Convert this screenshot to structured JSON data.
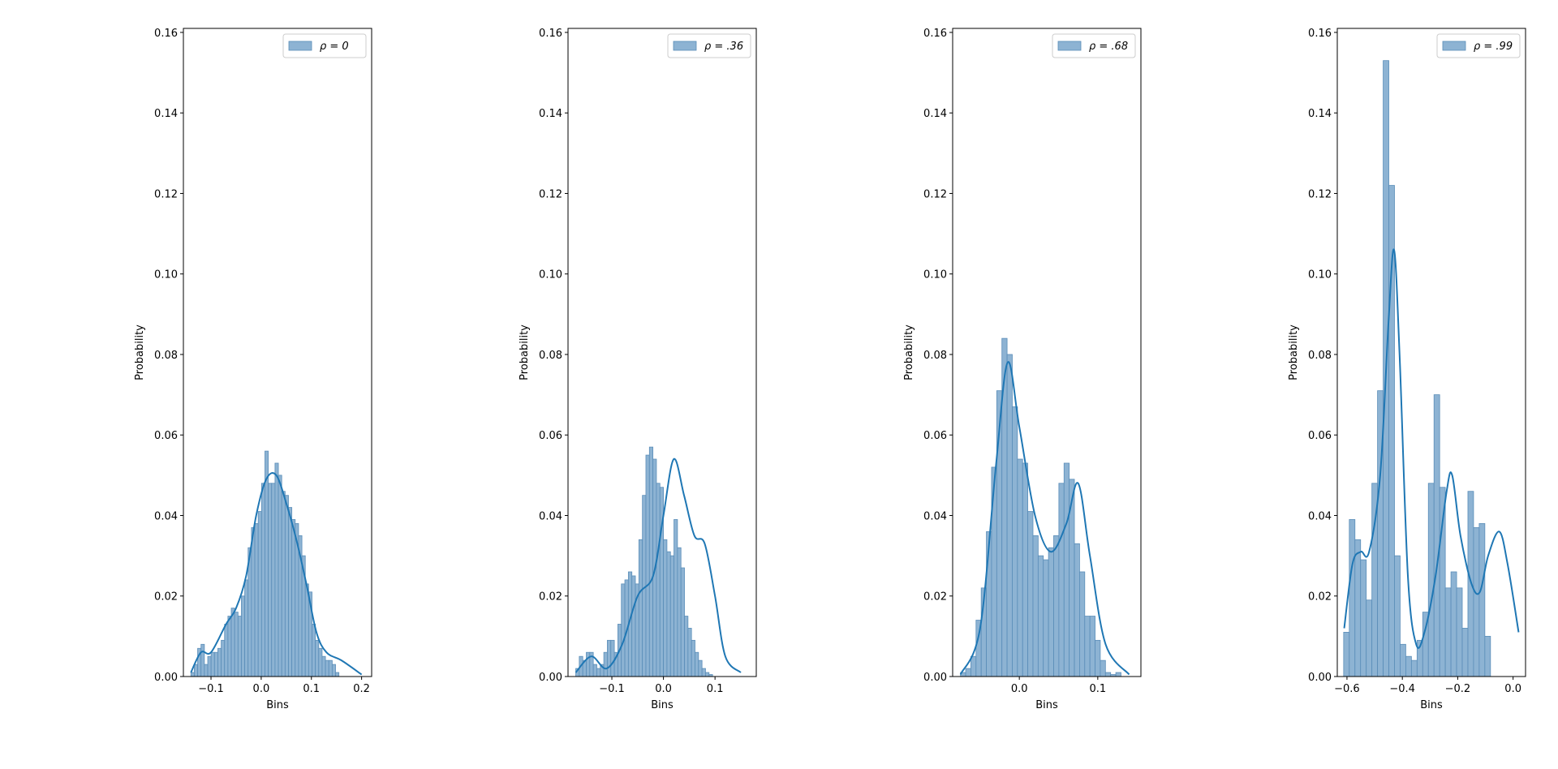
{
  "chart_data": [
    {
      "type": "bar",
      "xlabel": "Bins",
      "ylabel": "Probability",
      "legend": {
        "label": "ρ = 0",
        "placement": "top-right"
      },
      "xlim": [
        -0.155,
        0.22
      ],
      "ylim": [
        0,
        0.161
      ],
      "xticks": [
        -0.1,
        0.0,
        0.1,
        0.2
      ],
      "xtick_labels": [
        "−0.1",
        "0.0",
        "0.1",
        "0.2"
      ],
      "yticks": [
        0,
        0.02,
        0.04,
        0.06,
        0.08,
        0.1,
        0.12,
        0.14,
        0.16
      ],
      "ytick_labels": [
        "0.00",
        "0.02",
        "0.04",
        "0.06",
        "0.08",
        "0.10",
        "0.12",
        "0.14",
        "0.16"
      ],
      "bin_start": -0.14,
      "bin_width": 0.0067,
      "values": [
        0.001,
        0.003,
        0.007,
        0.008,
        0.003,
        0.005,
        0.006,
        0.006,
        0.007,
        0.009,
        0.013,
        0.015,
        0.017,
        0.016,
        0.015,
        0.02,
        0.024,
        0.032,
        0.037,
        0.038,
        0.041,
        0.048,
        0.056,
        0.048,
        0.048,
        0.053,
        0.05,
        0.046,
        0.045,
        0.042,
        0.039,
        0.038,
        0.035,
        0.03,
        0.023,
        0.021,
        0.013,
        0.009,
        0.007,
        0.005,
        0.004,
        0.004,
        0.003,
        0.001
      ],
      "kde": [
        [
          -0.14,
          0.001
        ],
        [
          -0.12,
          0.006
        ],
        [
          -0.1,
          0.006
        ],
        [
          -0.07,
          0.013
        ],
        [
          -0.05,
          0.017
        ],
        [
          -0.03,
          0.025
        ],
        [
          -0.01,
          0.04
        ],
        [
          0.01,
          0.049
        ],
        [
          0.03,
          0.05
        ],
        [
          0.05,
          0.043
        ],
        [
          0.07,
          0.034
        ],
        [
          0.09,
          0.023
        ],
        [
          0.11,
          0.011
        ],
        [
          0.13,
          0.006
        ],
        [
          0.16,
          0.004
        ],
        [
          0.2,
          0.0005
        ]
      ]
    },
    {
      "type": "bar",
      "xlabel": "Bins",
      "ylabel": "Probability",
      "legend": {
        "label": "ρ = .36",
        "placement": "top-right"
      },
      "xlim": [
        -0.185,
        0.18
      ],
      "ylim": [
        0,
        0.161
      ],
      "xticks": [
        -0.1,
        0.0,
        0.1
      ],
      "xtick_labels": [
        "−0.1",
        "0.0",
        "0.1"
      ],
      "yticks": [
        0,
        0.02,
        0.04,
        0.06,
        0.08,
        0.1,
        0.12,
        0.14,
        0.16
      ],
      "ytick_labels": [
        "0.00",
        "0.02",
        "0.04",
        "0.06",
        "0.08",
        "0.10",
        "0.12",
        "0.14",
        "0.16"
      ],
      "bin_start": -0.17,
      "bin_width": 0.0068,
      "values": [
        0.002,
        0.005,
        0.004,
        0.006,
        0.006,
        0.003,
        0.002,
        0.003,
        0.006,
        0.009,
        0.009,
        0.006,
        0.013,
        0.023,
        0.024,
        0.026,
        0.025,
        0.023,
        0.034,
        0.045,
        0.055,
        0.057,
        0.054,
        0.048,
        0.047,
        0.034,
        0.031,
        0.03,
        0.039,
        0.032,
        0.027,
        0.015,
        0.012,
        0.009,
        0.006,
        0.004,
        0.002,
        0.001,
        0.0005
      ],
      "kde": [
        [
          -0.17,
          0.001
        ],
        [
          -0.14,
          0.005
        ],
        [
          -0.11,
          0.002
        ],
        [
          -0.08,
          0.008
        ],
        [
          -0.05,
          0.02
        ],
        [
          -0.02,
          0.025
        ],
        [
          0.0,
          0.04
        ],
        [
          0.02,
          0.054
        ],
        [
          0.04,
          0.045
        ],
        [
          0.06,
          0.035
        ],
        [
          0.08,
          0.033
        ],
        [
          0.1,
          0.02
        ],
        [
          0.12,
          0.005
        ],
        [
          0.15,
          0.001
        ]
      ]
    },
    {
      "type": "bar",
      "xlabel": "Bins",
      "ylabel": "Probability",
      "legend": {
        "label": "ρ = .68",
        "placement": "top-right"
      },
      "xlim": [
        -0.085,
        0.155
      ],
      "ylim": [
        0,
        0.161
      ],
      "xticks": [
        0.0,
        0.1
      ],
      "xtick_labels": [
        "0.0",
        "0.1"
      ],
      "yticks": [
        0,
        0.02,
        0.04,
        0.06,
        0.08,
        0.1,
        0.12,
        0.14,
        0.16
      ],
      "ytick_labels": [
        "0.00",
        "0.02",
        "0.04",
        "0.06",
        "0.08",
        "0.10",
        "0.12",
        "0.14",
        "0.16"
      ],
      "bin_start": -0.075,
      "bin_width": 0.0066,
      "values": [
        0.001,
        0.002,
        0.005,
        0.014,
        0.022,
        0.036,
        0.052,
        0.071,
        0.084,
        0.08,
        0.067,
        0.054,
        0.053,
        0.041,
        0.035,
        0.03,
        0.029,
        0.032,
        0.035,
        0.048,
        0.053,
        0.049,
        0.033,
        0.026,
        0.015,
        0.015,
        0.009,
        0.004,
        0.001,
        0.0005,
        0.001
      ],
      "kde": [
        [
          -0.075,
          0.0005
        ],
        [
          -0.05,
          0.012
        ],
        [
          -0.03,
          0.052
        ],
        [
          -0.015,
          0.078
        ],
        [
          0.0,
          0.062
        ],
        [
          0.02,
          0.04
        ],
        [
          0.04,
          0.031
        ],
        [
          0.06,
          0.038
        ],
        [
          0.075,
          0.048
        ],
        [
          0.09,
          0.03
        ],
        [
          0.11,
          0.008
        ],
        [
          0.14,
          0.0005
        ]
      ]
    },
    {
      "type": "bar",
      "xlabel": "Bins",
      "ylabel": "Probability",
      "legend": {
        "label": "ρ = .99",
        "placement": "top-right"
      },
      "xlim": [
        -0.635,
        0.045
      ],
      "ylim": [
        0,
        0.161
      ],
      "xticks": [
        -0.6,
        -0.4,
        -0.2,
        0.0
      ],
      "xtick_labels": [
        "−0.6",
        "−0.4",
        "−0.2",
        "0.0"
      ],
      "yticks": [
        0,
        0.02,
        0.04,
        0.06,
        0.08,
        0.1,
        0.12,
        0.14,
        0.16
      ],
      "ytick_labels": [
        "0.00",
        "0.02",
        "0.04",
        "0.06",
        "0.08",
        "0.10",
        "0.12",
        "0.14",
        "0.16"
      ],
      "bin_start": -0.612,
      "bin_width": 0.0204,
      "values": [
        0.011,
        0.039,
        0.034,
        0.029,
        0.019,
        0.048,
        0.071,
        0.153,
        0.122,
        0.03,
        0.008,
        0.005,
        0.004,
        0.009,
        0.016,
        0.048,
        0.07,
        0.047,
        0.022,
        0.026,
        0.022,
        0.012,
        0.046,
        0.037,
        0.038,
        0.01
      ],
      "kde": [
        [
          -0.61,
          0.012
        ],
        [
          -0.58,
          0.028
        ],
        [
          -0.55,
          0.031
        ],
        [
          -0.52,
          0.031
        ],
        [
          -0.48,
          0.05
        ],
        [
          -0.45,
          0.088
        ],
        [
          -0.43,
          0.106
        ],
        [
          -0.41,
          0.08
        ],
        [
          -0.38,
          0.025
        ],
        [
          -0.35,
          0.008
        ],
        [
          -0.32,
          0.011
        ],
        [
          -0.28,
          0.025
        ],
        [
          -0.24,
          0.046
        ],
        [
          -0.22,
          0.05
        ],
        [
          -0.19,
          0.035
        ],
        [
          -0.15,
          0.023
        ],
        [
          -0.12,
          0.021
        ],
        [
          -0.09,
          0.03
        ],
        [
          -0.05,
          0.036
        ],
        [
          -0.02,
          0.028
        ],
        [
          0.02,
          0.011
        ]
      ]
    }
  ],
  "colors": {
    "bar_fill": "#8db3d3",
    "bar_edge": "#5a8db8",
    "kde_line": "#1f77b4",
    "axes": "#000000"
  }
}
